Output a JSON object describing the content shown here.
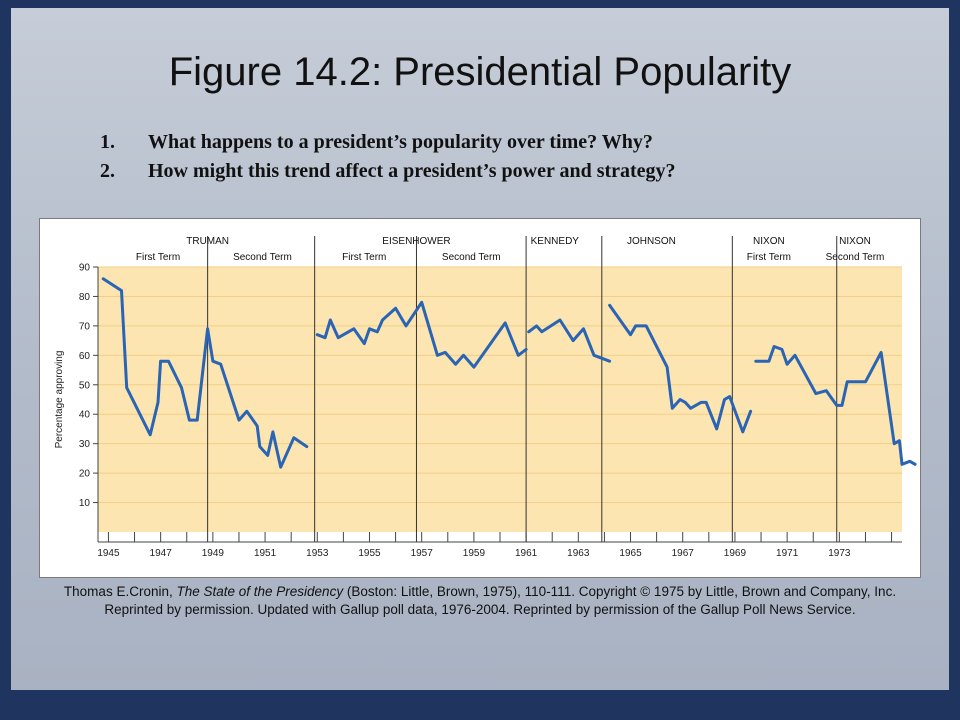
{
  "title": "Figure 14.2: Presidential Popularity",
  "questions": [
    {
      "num": "1.",
      "text": "What happens to a president’s popularity over time? Why?"
    },
    {
      "num": "2.",
      "text": "How might this trend affect a president’s power and strategy?"
    }
  ],
  "caption": {
    "author": "Thomas E.Cronin, ",
    "book": "The State of the Presidency",
    "rest": " (Boston: Little, Brown, 1975), 110-111. Copyright © 1975 by Little, Brown and Company, Inc. Reprinted by permission. Updated with Gallup poll data, 1976-2004. Reprinted by permission of the Gallup Poll News Service."
  },
  "colors": {
    "plot_bg": "#fce5b0",
    "grid": "#f3cf86",
    "line": "#2a64b4",
    "divider": "#333333"
  },
  "chart_data": {
    "type": "line",
    "title": "",
    "ylabel": "Percentage approving",
    "xlabel": "",
    "ylim": [
      0,
      90
    ],
    "xlim": [
      1944.6,
      1975.4
    ],
    "yticks": [
      10,
      20,
      30,
      40,
      50,
      60,
      70,
      80,
      90
    ],
    "xticks": [
      1945,
      1947,
      1949,
      1951,
      1953,
      1955,
      1957,
      1959,
      1961,
      1963,
      1965,
      1967,
      1969,
      1971,
      1973
    ],
    "grid": true,
    "term_dividers": [
      1948.8,
      1952.9,
      1956.8,
      1961.0,
      1963.9,
      1968.9,
      1972.9
    ],
    "presidents": [
      {
        "name": "TRUMAN",
        "x": 1948.8
      },
      {
        "name": "EISENHOWER",
        "x": 1956.8
      },
      {
        "name": "KENNEDY",
        "x": 1962.1
      },
      {
        "name": "JOHNSON",
        "x": 1965.8
      },
      {
        "name": "NIXON",
        "x": 1970.3
      },
      {
        "name": "NIXON",
        "x": 1973.6
      }
    ],
    "terms": [
      {
        "name": "First Term",
        "x": 1946.9
      },
      {
        "name": "Second Term",
        "x": 1950.9
      },
      {
        "name": "First Term",
        "x": 1954.8
      },
      {
        "name": "Second Term",
        "x": 1958.9
      },
      {
        "name": "First Term",
        "x": 1970.3
      },
      {
        "name": "Second Term",
        "x": 1973.6
      }
    ],
    "series": [
      {
        "points": [
          [
            1944.8,
            86
          ],
          [
            1945.5,
            82
          ],
          [
            1945.7,
            49
          ],
          [
            1946.6,
            33
          ],
          [
            1946.9,
            44
          ],
          [
            1947.0,
            58
          ],
          [
            1947.3,
            58
          ],
          [
            1947.8,
            49
          ],
          [
            1948.1,
            38
          ],
          [
            1948.4,
            38
          ],
          [
            1948.8,
            69
          ],
          [
            1949.0,
            58
          ],
          [
            1949.3,
            57
          ],
          [
            1950.0,
            38
          ],
          [
            1950.3,
            41
          ],
          [
            1950.7,
            36
          ],
          [
            1950.8,
            29
          ],
          [
            1951.1,
            26
          ],
          [
            1951.3,
            34
          ],
          [
            1951.6,
            22
          ],
          [
            1952.1,
            32
          ],
          [
            1952.6,
            29
          ]
        ]
      },
      {
        "points": [
          [
            1953.0,
            67
          ],
          [
            1953.3,
            66
          ],
          [
            1953.5,
            72
          ],
          [
            1953.8,
            66
          ],
          [
            1954.4,
            69
          ],
          [
            1954.8,
            64
          ],
          [
            1955.0,
            69
          ],
          [
            1955.3,
            68
          ],
          [
            1955.5,
            72
          ],
          [
            1956.0,
            76
          ],
          [
            1956.4,
            70
          ],
          [
            1957.0,
            78
          ],
          [
            1957.6,
            60
          ],
          [
            1957.9,
            61
          ],
          [
            1958.3,
            57
          ],
          [
            1958.6,
            60
          ],
          [
            1959.0,
            56
          ],
          [
            1960.2,
            71
          ],
          [
            1960.7,
            60
          ],
          [
            1961.0,
            62
          ]
        ]
      },
      {
        "points": [
          [
            1961.1,
            68
          ],
          [
            1961.4,
            70
          ],
          [
            1961.6,
            68
          ],
          [
            1962.3,
            72
          ],
          [
            1962.8,
            65
          ],
          [
            1963.2,
            69
          ],
          [
            1963.6,
            60
          ],
          [
            1964.2,
            58
          ]
        ]
      },
      {
        "points": [
          [
            1964.2,
            77
          ],
          [
            1965.0,
            67
          ],
          [
            1965.2,
            70
          ],
          [
            1965.6,
            70
          ],
          [
            1966.4,
            56
          ],
          [
            1966.6,
            42
          ],
          [
            1966.9,
            45
          ],
          [
            1967.1,
            44
          ],
          [
            1967.3,
            42
          ],
          [
            1967.7,
            44
          ],
          [
            1967.9,
            44
          ],
          [
            1968.3,
            35
          ],
          [
            1968.6,
            45
          ],
          [
            1968.8,
            46
          ],
          [
            1969.3,
            34
          ],
          [
            1969.6,
            41
          ]
        ]
      },
      {
        "points": [
          [
            1969.8,
            58
          ],
          [
            1970.3,
            58
          ],
          [
            1970.5,
            63
          ],
          [
            1970.8,
            62
          ],
          [
            1971.0,
            57
          ],
          [
            1971.3,
            60
          ],
          [
            1972.1,
            47
          ],
          [
            1972.5,
            48
          ],
          [
            1972.9,
            43
          ],
          [
            1973.1,
            43
          ],
          [
            1973.3,
            51
          ],
          [
            1973.6,
            51
          ],
          [
            1974.0,
            51
          ],
          [
            1974.6,
            61
          ],
          [
            1975.1,
            30
          ],
          [
            1975.3,
            31
          ],
          [
            1975.4,
            23
          ],
          [
            1975.7,
            24
          ],
          [
            1975.9,
            23
          ]
        ]
      }
    ]
  }
}
